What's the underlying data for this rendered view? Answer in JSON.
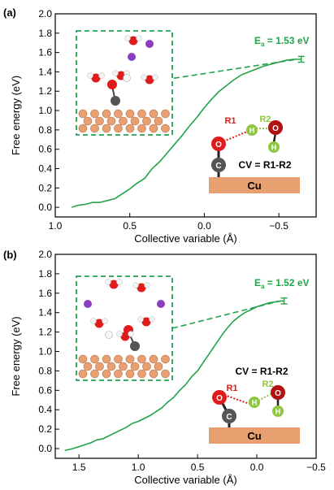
{
  "panels": [
    {
      "id": "a",
      "panel_label": "(a)",
      "ea_label": "E",
      "ea_sub": "a",
      "ea_value": " = 1.53 eV",
      "cv_label": "CV = R1-R2",
      "surface_label": "Cu",
      "r1_label": "R1",
      "r2_label": "R2",
      "atom_o": "O",
      "atom_c": "C",
      "atom_h": "H"
    },
    {
      "id": "b",
      "panel_label": "(b)",
      "ea_label": "E",
      "ea_sub": "a",
      "ea_value": " = 1.52 eV",
      "cv_label": "CV = R1-R2",
      "surface_label": "Cu",
      "r1_label": "R1",
      "r2_label": "R2",
      "atom_o": "O",
      "atom_c": "C",
      "atom_h": "H"
    }
  ],
  "colors": {
    "curve": "#22a34a",
    "axis": "#000000",
    "copper": "#e9a070",
    "oxygen": "#e01b1b",
    "carbon": "#555555",
    "hydrogen": "#8ec63f",
    "bond_r1": "#e01b1b",
    "bond_r2": "#8ec63f",
    "potassium": "#8a3fc2"
  },
  "chart_data": [
    {
      "type": "line",
      "panel": "a",
      "xlabel": "Collective variable (Å)",
      "ylabel": "Free energy (eV)",
      "xlim": [
        1.0,
        -0.75
      ],
      "ylim": [
        -0.1,
        2.0
      ],
      "xticks": [
        1.0,
        0.5,
        0.0,
        -0.5
      ],
      "xtick_labels": [
        "1.0",
        "0.5",
        "0.0",
        "−0.5"
      ],
      "yticks": [
        0.0,
        0.2,
        0.4,
        0.6,
        0.8,
        1.0,
        1.2,
        1.4,
        1.6,
        1.8,
        2.0
      ],
      "ytick_labels": [
        "0.0",
        "0.2",
        "0.4",
        "0.6",
        "0.8",
        "1.0",
        "1.2",
        "1.4",
        "1.6",
        "1.8",
        "2.0"
      ],
      "activation_energy": 1.53,
      "error_bar": {
        "x": -0.65,
        "y": 1.53,
        "err": 0.03
      },
      "series": [
        {
          "x": [
            0.89,
            0.85,
            0.8,
            0.75,
            0.7,
            0.65,
            0.6,
            0.55,
            0.5,
            0.45,
            0.4,
            0.35,
            0.3,
            0.25,
            0.2,
            0.15,
            0.1,
            0.05,
            0.0,
            -0.05,
            -0.1,
            -0.15,
            -0.2,
            -0.25,
            -0.3,
            -0.35,
            -0.4,
            -0.45,
            -0.5,
            -0.55,
            -0.6,
            -0.65
          ],
          "y": [
            0.0,
            0.02,
            0.03,
            0.05,
            0.05,
            0.07,
            0.09,
            0.14,
            0.19,
            0.25,
            0.3,
            0.4,
            0.47,
            0.56,
            0.65,
            0.74,
            0.84,
            0.93,
            1.03,
            1.12,
            1.2,
            1.26,
            1.32,
            1.37,
            1.4,
            1.43,
            1.46,
            1.48,
            1.5,
            1.52,
            1.53,
            1.53
          ]
        }
      ]
    },
    {
      "type": "line",
      "panel": "b",
      "xlabel": "Collective variable (Å)",
      "ylabel": "Free energy (eV)",
      "xlim": [
        1.7,
        -0.5
      ],
      "ylim": [
        -0.1,
        2.0
      ],
      "xticks": [
        1.5,
        1.0,
        0.5,
        0.0,
        -0.5
      ],
      "xtick_labels": [
        "1.5",
        "1.0",
        "0.5",
        "0.0",
        "−0.5"
      ],
      "yticks": [
        0.0,
        0.2,
        0.4,
        0.6,
        0.8,
        1.0,
        1.2,
        1.4,
        1.6,
        1.8,
        2.0
      ],
      "ytick_labels": [
        "0.0",
        "0.2",
        "0.4",
        "0.6",
        "0.8",
        "1.0",
        "1.2",
        "1.4",
        "1.6",
        "1.8",
        "2.0"
      ],
      "activation_energy": 1.52,
      "error_bar": {
        "x": -0.23,
        "y": 1.52,
        "err": 0.03
      },
      "series": [
        {
          "x": [
            1.62,
            1.55,
            1.5,
            1.45,
            1.4,
            1.35,
            1.3,
            1.25,
            1.2,
            1.15,
            1.1,
            1.05,
            1.0,
            0.95,
            0.9,
            0.85,
            0.8,
            0.75,
            0.7,
            0.65,
            0.6,
            0.55,
            0.5,
            0.45,
            0.4,
            0.35,
            0.3,
            0.25,
            0.2,
            0.15,
            0.1,
            0.05,
            0.0,
            -0.05,
            -0.1,
            -0.15,
            -0.2,
            -0.23
          ],
          "y": [
            -0.02,
            0.0,
            0.02,
            0.04,
            0.06,
            0.09,
            0.1,
            0.13,
            0.16,
            0.19,
            0.22,
            0.26,
            0.28,
            0.31,
            0.34,
            0.38,
            0.42,
            0.48,
            0.53,
            0.6,
            0.66,
            0.74,
            0.8,
            0.89,
            0.98,
            1.07,
            1.16,
            1.24,
            1.31,
            1.36,
            1.4,
            1.43,
            1.46,
            1.48,
            1.5,
            1.51,
            1.52,
            1.52
          ]
        }
      ]
    }
  ]
}
